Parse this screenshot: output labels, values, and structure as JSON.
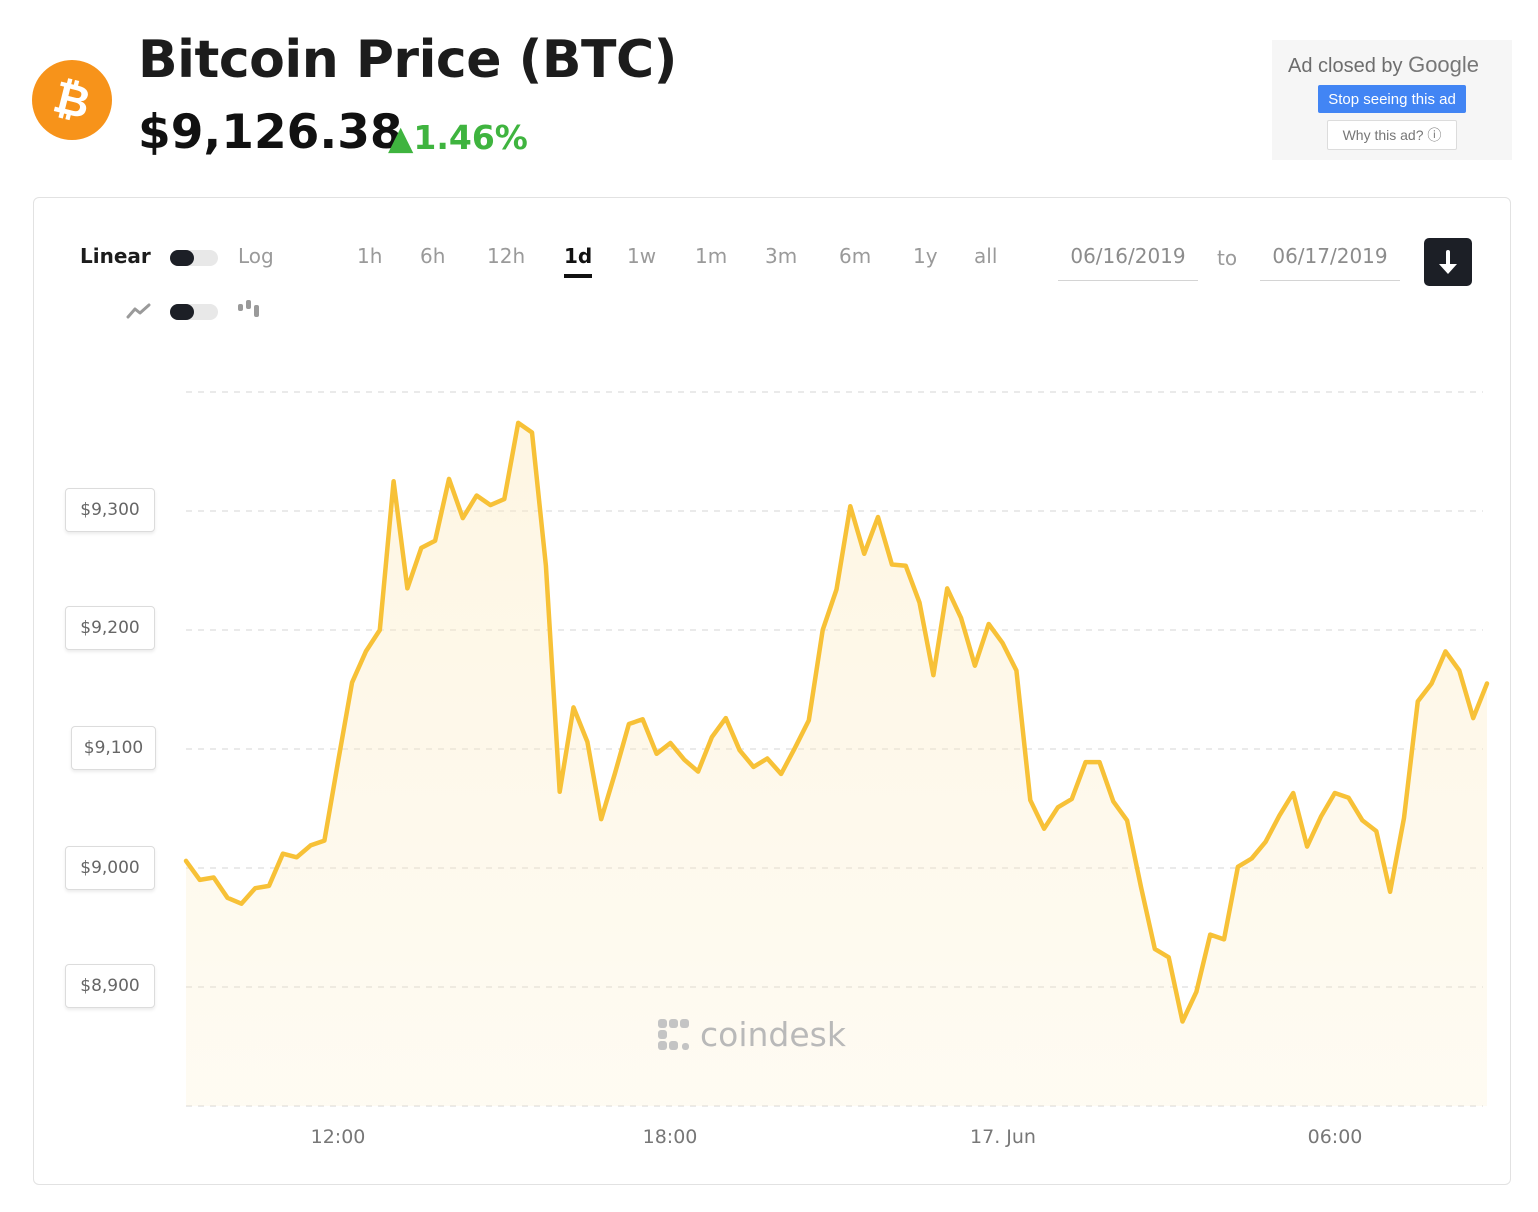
{
  "header": {
    "logo_symbol": "₿",
    "title": "Bitcoin Price (BTC)",
    "price": "$9,126.38",
    "change": "▲1.46%",
    "colors": {
      "brand": "#f7931a",
      "up": "#3fb43f"
    }
  },
  "ad": {
    "closed_by": "Ad closed by",
    "google": "Google",
    "stop": "Stop seeing this ad",
    "why": "Why this ad? ⓘ"
  },
  "controls": {
    "scale_linear": "Linear",
    "scale_log": "Log",
    "ranges": [
      "1h",
      "6h",
      "12h",
      "1d",
      "1w",
      "1m",
      "3m",
      "6m",
      "1y",
      "all"
    ],
    "active_range": "1d",
    "date_from": "06/16/2019",
    "date_to_word": "to",
    "date_to": "06/17/2019",
    "icons": [
      "line-chart-icon",
      "candlestick-icon",
      "download-icon"
    ]
  },
  "watermark": "coindesk",
  "chart_data": {
    "type": "area",
    "title": "",
    "xlabel": "",
    "ylabel": "",
    "x_ticks": [
      "12:00",
      "18:00",
      "17. Jun",
      "06:00"
    ],
    "y_ticks": [
      "$8,900",
      "$9,000",
      "$9,100",
      "$9,200",
      "$9,300"
    ],
    "ylim": [
      8800,
      9400
    ],
    "grid": true,
    "series_color": "#f7c137",
    "x_unit": "hours since 2019-06-16 00:00",
    "x_range": [
      9.25,
      32.75
    ],
    "series": [
      {
        "values": [
          [
            9.25,
            9006
          ],
          [
            9.5,
            8990
          ],
          [
            9.75,
            8992
          ],
          [
            10.0,
            8975
          ],
          [
            10.25,
            8970
          ],
          [
            10.5,
            8983
          ],
          [
            10.75,
            8985
          ],
          [
            11.0,
            9012
          ],
          [
            11.25,
            9009
          ],
          [
            11.5,
            9019
          ],
          [
            11.75,
            9023
          ],
          [
            12.0,
            9090
          ],
          [
            12.25,
            9156
          ],
          [
            12.5,
            9182
          ],
          [
            12.75,
            9200
          ],
          [
            13.0,
            9325
          ],
          [
            13.25,
            9235
          ],
          [
            13.5,
            9269
          ],
          [
            13.75,
            9275
          ],
          [
            14.0,
            9327
          ],
          [
            14.25,
            9294
          ],
          [
            14.5,
            9313
          ],
          [
            14.75,
            9305
          ],
          [
            15.0,
            9310
          ],
          [
            15.25,
            9374
          ],
          [
            15.5,
            9366
          ],
          [
            15.75,
            9254
          ],
          [
            16.0,
            9064
          ],
          [
            16.25,
            9135
          ],
          [
            16.5,
            9106
          ],
          [
            16.75,
            9041
          ],
          [
            17.0,
            9080
          ],
          [
            17.25,
            9121
          ],
          [
            17.5,
            9125
          ],
          [
            17.75,
            9096
          ],
          [
            18.0,
            9105
          ],
          [
            18.25,
            9091
          ],
          [
            18.5,
            9081
          ],
          [
            18.75,
            9110
          ],
          [
            19.0,
            9126
          ],
          [
            19.25,
            9099
          ],
          [
            19.5,
            9085
          ],
          [
            19.75,
            9092
          ],
          [
            20.0,
            9079
          ],
          [
            20.25,
            9101
          ],
          [
            20.5,
            9124
          ],
          [
            20.75,
            9200
          ],
          [
            21.0,
            9234
          ],
          [
            21.25,
            9304
          ],
          [
            21.5,
            9264
          ],
          [
            21.75,
            9295
          ],
          [
            22.0,
            9255
          ],
          [
            22.25,
            9254
          ],
          [
            22.5,
            9223
          ],
          [
            22.75,
            9162
          ],
          [
            23.0,
            9235
          ],
          [
            23.25,
            9210
          ],
          [
            23.5,
            9170
          ],
          [
            23.75,
            9205
          ],
          [
            24.0,
            9189
          ],
          [
            24.25,
            9166
          ],
          [
            24.5,
            9057
          ],
          [
            24.75,
            9033
          ],
          [
            25.0,
            9051
          ],
          [
            25.25,
            9058
          ],
          [
            25.5,
            9089
          ],
          [
            25.75,
            9089
          ],
          [
            26.0,
            9056
          ],
          [
            26.25,
            9040
          ],
          [
            26.5,
            8984
          ],
          [
            26.75,
            8932
          ],
          [
            27.0,
            8925
          ],
          [
            27.25,
            8871
          ],
          [
            27.5,
            8896
          ],
          [
            27.75,
            8944
          ],
          [
            28.0,
            8940
          ],
          [
            28.25,
            9001
          ],
          [
            28.5,
            9008
          ],
          [
            28.75,
            9022
          ],
          [
            29.0,
            9044
          ],
          [
            29.25,
            9063
          ],
          [
            29.5,
            9018
          ],
          [
            29.75,
            9043
          ],
          [
            30.0,
            9063
          ],
          [
            30.25,
            9059
          ],
          [
            30.5,
            9040
          ],
          [
            30.75,
            9031
          ],
          [
            31.0,
            8980
          ],
          [
            31.25,
            9042
          ],
          [
            31.5,
            9140
          ],
          [
            31.75,
            9155
          ],
          [
            32.0,
            9182
          ],
          [
            32.25,
            9166
          ],
          [
            32.5,
            9126
          ],
          [
            32.75,
            9155
          ]
        ]
      }
    ]
  }
}
